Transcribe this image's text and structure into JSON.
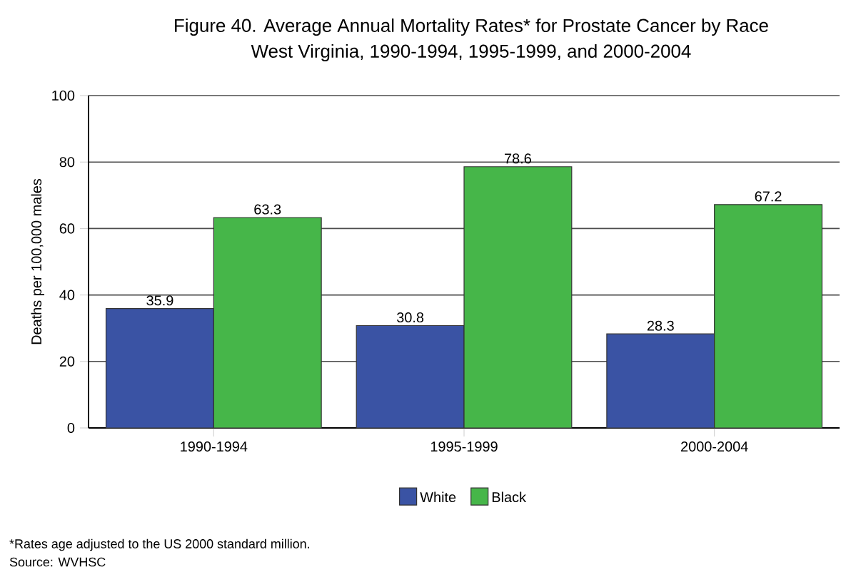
{
  "chart_data": {
    "type": "bar",
    "title": "Figure 40. Average Annual Mortality Rates* for Prostate Cancer by Race",
    "subtitle": "West Virginia, 1990-1994, 1995-1999, and 2000-2004",
    "ylabel": "Deaths per 100,000 males",
    "categories": [
      "1990-1994",
      "1995-1999",
      "2000-2004"
    ],
    "series": [
      {
        "name": "White",
        "color": "#3a53a4",
        "values": [
          35.9,
          30.8,
          28.3
        ]
      },
      {
        "name": "Black",
        "color": "#46b649",
        "values": [
          63.3,
          78.6,
          67.2
        ]
      }
    ],
    "ylim": [
      0,
      100
    ],
    "yticks": [
      0,
      20,
      40,
      60,
      80,
      100
    ],
    "grid": "y",
    "legend": "bottom",
    "data_labels": true,
    "annotations": [
      "*Rates age adjusted to the US 2000 standard million.",
      "Source: WVHSC"
    ]
  }
}
